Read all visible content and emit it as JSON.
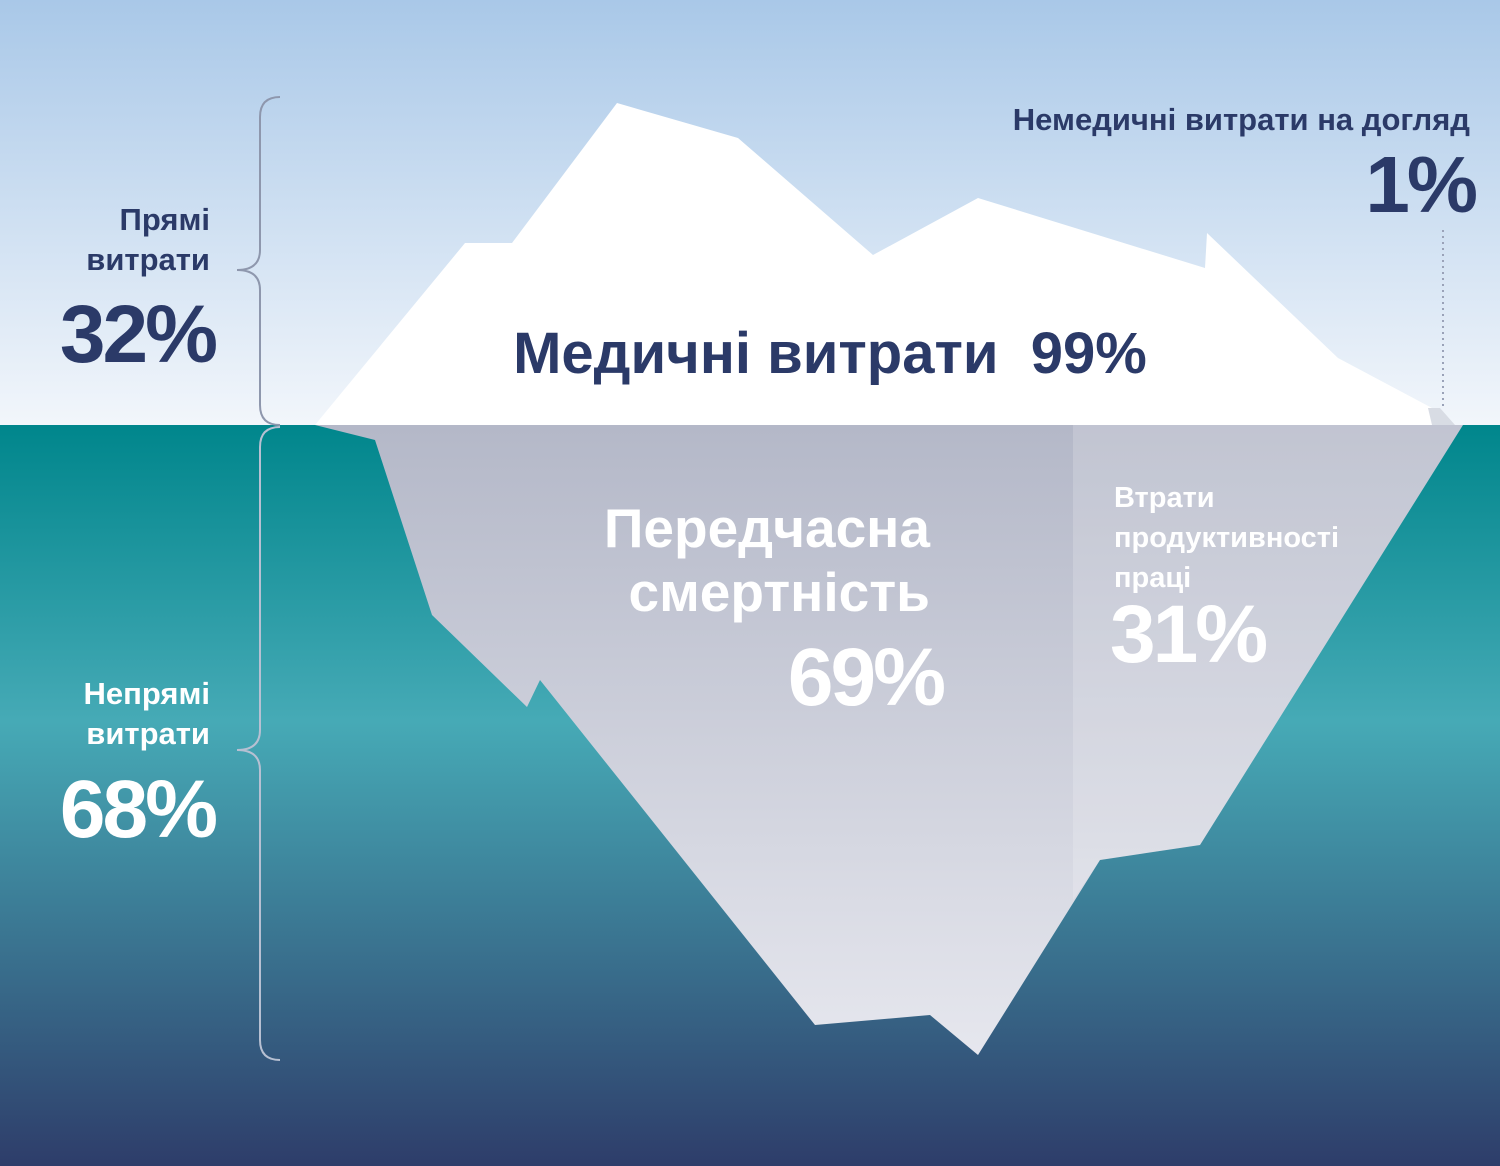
{
  "colors": {
    "sky_top": "#a9c8e8",
    "sky_bottom": "#f2f6fb",
    "water_top": "#00868c",
    "water_mid": "#46aab6",
    "water_bottom": "#2e3d6a",
    "text_dark": "#2b3a68",
    "text_light": "#ffffff",
    "ice_above": "#ffffff",
    "ice_below": "#c4c8d6"
  },
  "direct_costs": {
    "label": "Прямі витрати",
    "percent": "32%"
  },
  "indirect_costs": {
    "label": "Непрямі витрати",
    "percent": "68%"
  },
  "nonmedical_care_costs": {
    "label": "Немедичні витрати на догляд",
    "percent": "1%"
  },
  "medical_costs": {
    "label": "Медичні витрати  99%"
  },
  "premature_mortality": {
    "label": "Передчасна смертність",
    "percent": "69%"
  },
  "productivity_loss": {
    "label": "Втрати продуктивності праці",
    "percent": "31%"
  }
}
